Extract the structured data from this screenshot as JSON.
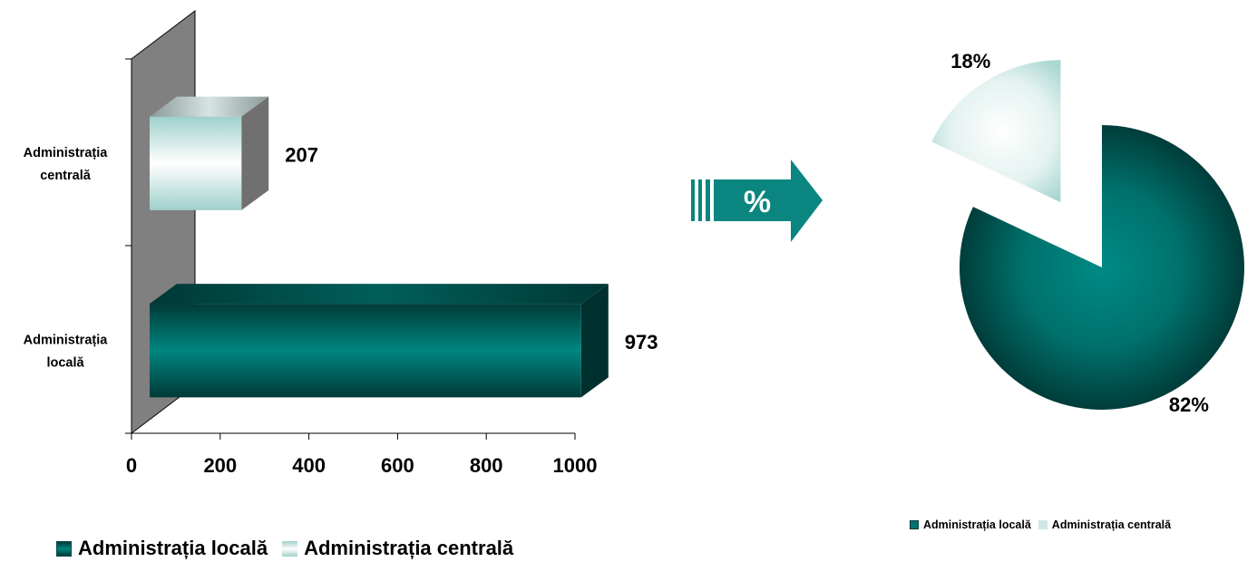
{
  "chart_data": [
    {
      "type": "bar",
      "orientation": "horizontal",
      "three_d": true,
      "categories": [
        [
          "Administrația",
          "centrală"
        ],
        [
          "Administrația",
          "locală"
        ]
      ],
      "values": [
        207,
        973
      ],
      "data_labels": [
        "207",
        "973"
      ],
      "colors": [
        "#b8dcd8",
        "#007470"
      ],
      "xlim": [
        0,
        1000
      ],
      "xticks": [
        "0",
        "200",
        "400",
        "600",
        "800",
        "1000"
      ],
      "grid": false,
      "legend": {
        "position": "bottom",
        "entries": [
          "Administrația locală",
          "Administrația centrală"
        ]
      }
    },
    {
      "type": "pie",
      "exploded": "Administrația centrală",
      "slices": [
        {
          "label": "Administrația locală",
          "value": 82,
          "display": "82%",
          "color": "#007470"
        },
        {
          "label": "Administrația centrală",
          "value": 18,
          "display": "18%",
          "color": "#b8dcd8"
        }
      ],
      "legend": {
        "position": "bottom",
        "entries": [
          "Administrația locală",
          "Administrația centrală"
        ]
      }
    }
  ],
  "arrow": {
    "label": "%",
    "color": "#0a8580"
  },
  "colors": {
    "dark_teal": "#007470",
    "light_teal": "#b8dcd8",
    "wall_gray": "#808080"
  }
}
